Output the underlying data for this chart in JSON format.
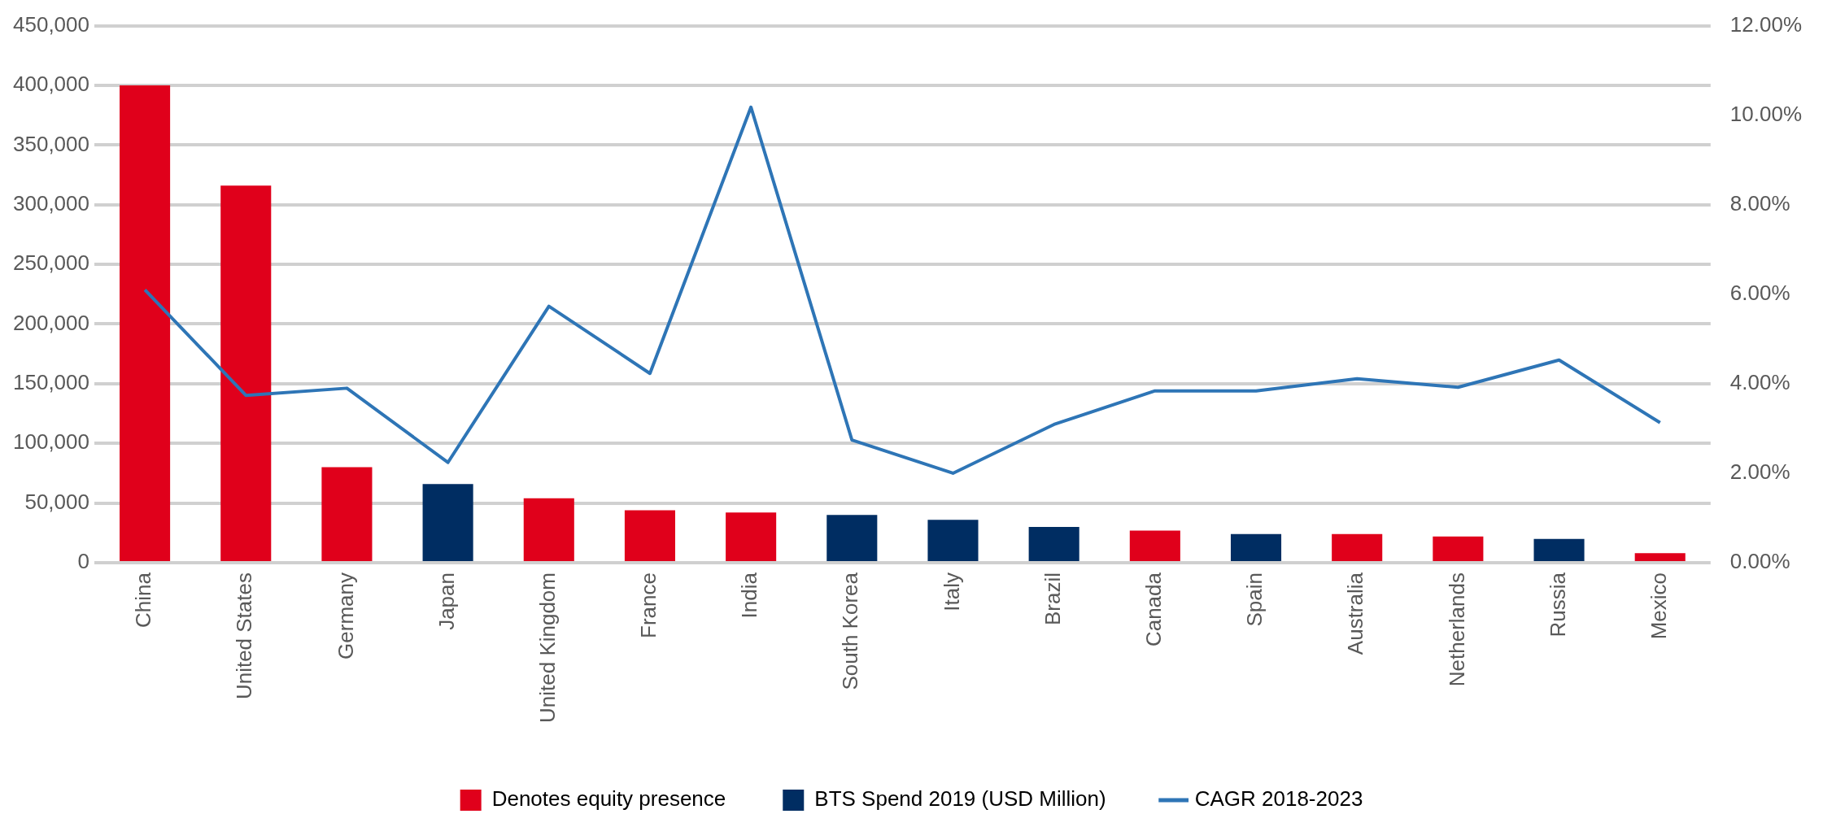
{
  "chart_data": {
    "type": "bar",
    "stacked": true,
    "categories": [
      "China",
      "United States",
      "Germany",
      "Japan",
      "United Kingdom",
      "France",
      "India",
      "South Korea",
      "Italy",
      "Brazil",
      "Canada",
      "Spain",
      "Australia",
      "Netherlands",
      "Russia",
      "Mexico"
    ],
    "series": [
      {
        "name": "Denotes equity presence",
        "color": "#e0001b",
        "values": [
          400000,
          316000,
          80000,
          null,
          54000,
          44000,
          42000,
          null,
          null,
          null,
          27000,
          null,
          24000,
          22000,
          null,
          8000
        ]
      },
      {
        "name": "BTS Spend 2019 (USD Million)",
        "color": "#002d62",
        "values": [
          null,
          null,
          null,
          66000,
          null,
          null,
          null,
          40000,
          36000,
          30000,
          null,
          24000,
          null,
          null,
          20000,
          null
        ]
      },
      {
        "name": "CAGR 2018-2023",
        "type": "line",
        "axis": "y2",
        "color": "#2e75b6",
        "values": [
          6.1,
          3.74,
          3.9,
          2.24,
          5.73,
          4.23,
          10.18,
          2.74,
          2.0,
          3.09,
          3.84,
          3.84,
          4.11,
          3.92,
          4.53,
          3.13
        ]
      }
    ],
    "ylim": [
      0,
      450000
    ],
    "yticks": [
      {
        "value": 0,
        "label": "0"
      },
      {
        "value": 50000,
        "label": "50,000"
      },
      {
        "value": 100000,
        "label": "100,000"
      },
      {
        "value": 150000,
        "label": "150,000"
      },
      {
        "value": 200000,
        "label": "200,000"
      },
      {
        "value": 250000,
        "label": "250,000"
      },
      {
        "value": 300000,
        "label": "300,000"
      },
      {
        "value": 350000,
        "label": "350,000"
      },
      {
        "value": 400000,
        "label": "400,000"
      },
      {
        "value": 450000,
        "label": "450,000"
      }
    ],
    "y2lim": [
      0,
      12
    ],
    "y2ticks": [
      {
        "value": 0,
        "label": "0.00%"
      },
      {
        "value": 2,
        "label": "2.00%"
      },
      {
        "value": 4,
        "label": "4.00%"
      },
      {
        "value": 6,
        "label": "6.00%"
      },
      {
        "value": 8,
        "label": "8.00%"
      },
      {
        "value": 10,
        "label": "10.00%"
      },
      {
        "value": 12,
        "label": "12.00%"
      }
    ],
    "grid": "y",
    "legend": "bottom",
    "marker": "none",
    "line_style": "solid"
  }
}
